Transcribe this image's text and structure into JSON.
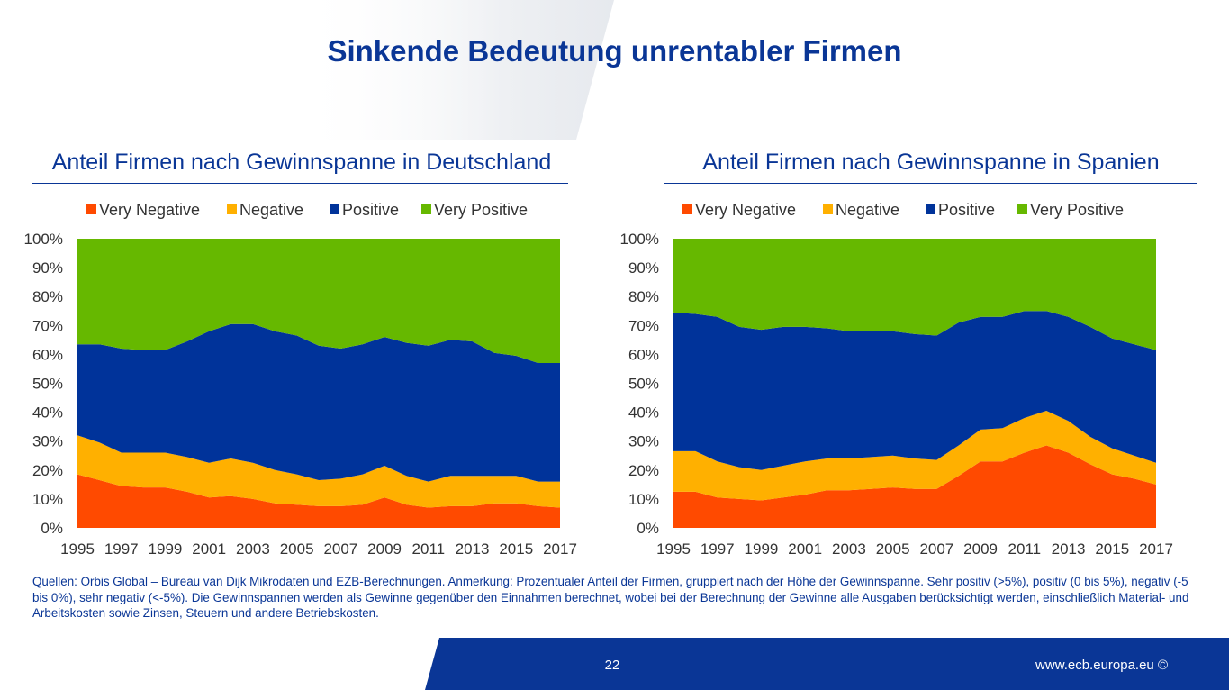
{
  "slide": {
    "title": "Sinkende Bedeutung unrentabler Firmen",
    "footnote": "Quellen: Orbis Global – Bureau van Dijk Mikrodaten und EZB-Berechnungen. Anmerkung: Prozentualer Anteil der Firmen, gruppiert nach der Höhe der Gewinnspanne. Sehr positiv (>5%), positiv (0 bis 5%), negativ (-5 bis 0%), sehr negativ (<-5%). Die Gewinnspannen werden als Gewinne gegenüber den Einnahmen berechnet, wobei bei der Berechnung der Gewinne alle Ausgaben berücksichtigt werden, einschließlich Material- und Arbeitskosten sowie Zinsen, Steuern und andere Betriebskosten.",
    "page_number": "22",
    "url": "www.ecb.europa.eu ©"
  },
  "colors": {
    "title_blue": "#0a3696",
    "footer_blue": "#0a3696",
    "very_negative": "#ff4a00",
    "negative": "#ffb000",
    "positive": "#00339a",
    "very_positive": "#66b800"
  },
  "chart_data": [
    {
      "type": "area",
      "stacked": true,
      "title": "Anteil Firmen nach Gewinnspanne in Deutschland",
      "x": [
        1995,
        1996,
        1997,
        1998,
        1999,
        2000,
        2001,
        2002,
        2003,
        2004,
        2005,
        2006,
        2007,
        2008,
        2009,
        2010,
        2011,
        2012,
        2013,
        2014,
        2015,
        2016,
        2017
      ],
      "x_tick_labels": [
        "1995",
        "1997",
        "1999",
        "2001",
        "2003",
        "2005",
        "2007",
        "2009",
        "2011",
        "2013",
        "2015",
        "2017"
      ],
      "y_tick_labels": [
        "0%",
        "10%",
        "20%",
        "30%",
        "40%",
        "50%",
        "60%",
        "70%",
        "80%",
        "90%",
        "100%"
      ],
      "ylim": [
        0,
        100
      ],
      "legend_position": "top",
      "series": [
        {
          "name": "Very Negative",
          "values": [
            18.5,
            16.5,
            14.5,
            14,
            14,
            12.5,
            10.5,
            11,
            10,
            8.5,
            8,
            7.5,
            7.5,
            8,
            10.5,
            8,
            7,
            7.5,
            7.5,
            8.5,
            8.5,
            7.5,
            7
          ]
        },
        {
          "name": "Negative",
          "values": [
            13.5,
            13,
            11.5,
            12,
            12,
            12,
            12,
            13,
            12.5,
            11.5,
            10.5,
            9,
            9.5,
            10.5,
            11,
            10,
            9,
            10.5,
            10.5,
            9.5,
            9.5,
            8.5,
            9
          ]
        },
        {
          "name": "Positive",
          "values": [
            31.5,
            34,
            36,
            35.5,
            35.5,
            40,
            45.5,
            46.5,
            48,
            48,
            48,
            46.5,
            45,
            45,
            44.5,
            46,
            47,
            47,
            46.5,
            42.5,
            41.5,
            41,
            41
          ]
        },
        {
          "name": "Very Positive",
          "values": [
            36.5,
            36.5,
            38,
            38.5,
            38.5,
            35.5,
            32,
            29.5,
            29.5,
            32,
            33.5,
            37,
            38,
            36.5,
            34,
            36,
            37,
            35,
            35.5,
            39.5,
            40.5,
            43,
            43
          ]
        }
      ]
    },
    {
      "type": "area",
      "stacked": true,
      "title": "Anteil Firmen nach Gewinnspanne in Spanien",
      "x": [
        1995,
        1996,
        1997,
        1998,
        1999,
        2000,
        2001,
        2002,
        2003,
        2004,
        2005,
        2006,
        2007,
        2008,
        2009,
        2010,
        2011,
        2012,
        2013,
        2014,
        2015,
        2016,
        2017
      ],
      "x_tick_labels": [
        "1995",
        "1997",
        "1999",
        "2001",
        "2003",
        "2005",
        "2007",
        "2009",
        "2011",
        "2013",
        "2015",
        "2017"
      ],
      "y_tick_labels": [
        "0%",
        "10%",
        "20%",
        "30%",
        "40%",
        "50%",
        "60%",
        "70%",
        "80%",
        "90%",
        "100%"
      ],
      "ylim": [
        0,
        100
      ],
      "legend_position": "top",
      "series": [
        {
          "name": "Very Negative",
          "values": [
            12.5,
            12.5,
            10.5,
            10,
            9.5,
            10.5,
            11.5,
            13,
            13,
            13.5,
            14,
            13.5,
            13.5,
            18,
            23,
            23,
            26,
            28.5,
            26,
            22,
            18.5,
            17,
            15
          ]
        },
        {
          "name": "Negative",
          "values": [
            14,
            14,
            12.5,
            11,
            10.5,
            11,
            11.5,
            11,
            11,
            11,
            11,
            10.5,
            10,
            10.5,
            11,
            11.5,
            12,
            12,
            11,
            9.5,
            9,
            8,
            7.5
          ]
        },
        {
          "name": "Positive",
          "values": [
            48,
            47.5,
            50,
            48.5,
            48.5,
            48,
            46.5,
            45,
            44,
            43.5,
            43,
            43,
            43,
            42.5,
            39,
            38.5,
            37,
            34.5,
            36,
            38,
            38,
            38.5,
            39
          ]
        },
        {
          "name": "Very Positive",
          "values": [
            25.5,
            26,
            27,
            30.5,
            31.5,
            30.5,
            30.5,
            31,
            32,
            32,
            32,
            33,
            33.5,
            29,
            27,
            27,
            25,
            25,
            27,
            30.5,
            34.5,
            36.5,
            38.5
          ]
        }
      ]
    }
  ]
}
